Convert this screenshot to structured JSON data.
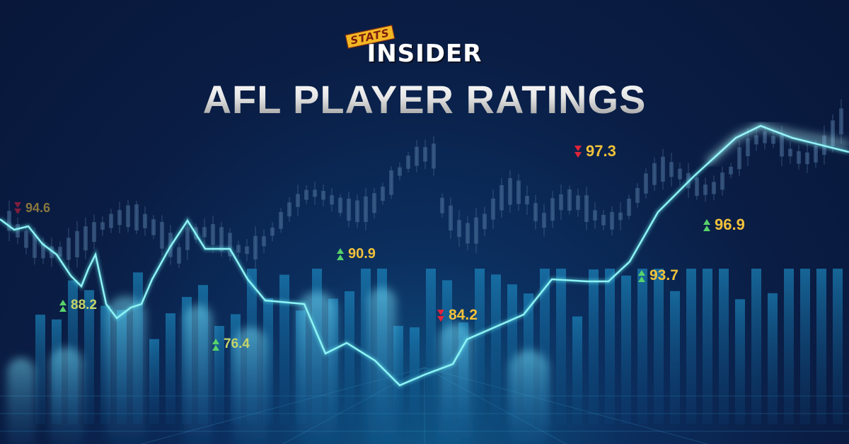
{
  "logo": {
    "stats": "STATS",
    "insider": "INSIDER"
  },
  "title": "AFL PLAYER RATINGS",
  "ratings": [
    {
      "value": "94.6",
      "direction": "down"
    },
    {
      "value": "88.2",
      "direction": "up"
    },
    {
      "value": "76.4",
      "direction": "up"
    },
    {
      "value": "90.9",
      "direction": "up"
    },
    {
      "value": "84.2",
      "direction": "down"
    },
    {
      "value": "97.3",
      "direction": "down"
    },
    {
      "value": "93.7",
      "direction": "up"
    },
    {
      "value": "96.9",
      "direction": "up"
    }
  ],
  "colors": {
    "up": "#58d26b",
    "down": "#e0243a",
    "value": "#f1c23a",
    "line": "#5fe3e8",
    "background": "#0a1d44"
  }
}
